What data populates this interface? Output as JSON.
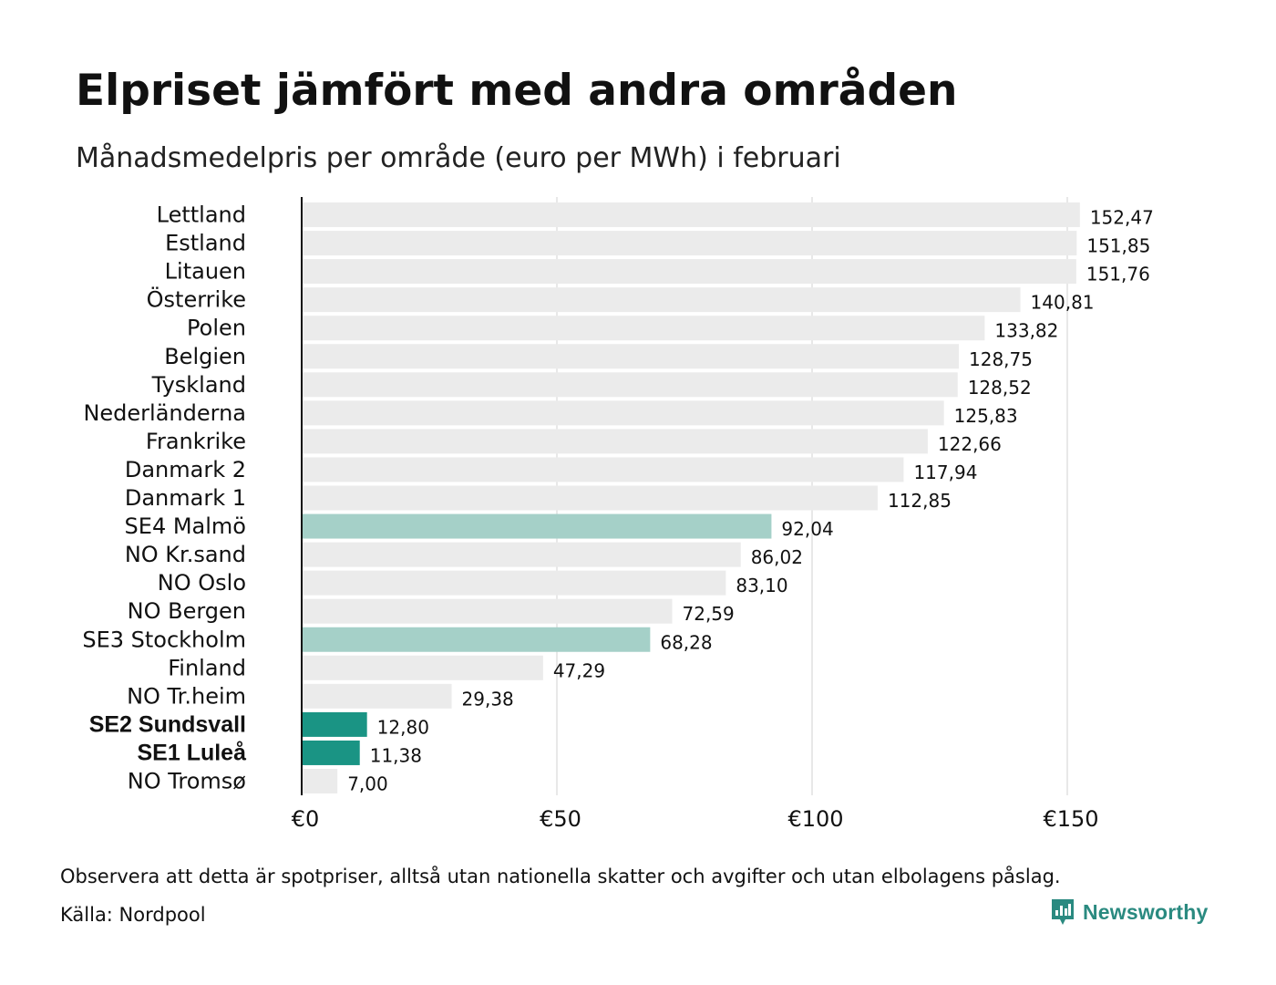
{
  "title": "Elpriset jämfört med andra områden",
  "subtitle": "Månadsmedelpris per område (euro per MWh) i februari",
  "note": "Observera att detta är spotpriser, alltså utan nationella skatter och avgifter och utan elbolagens påslag.",
  "source": "Källa: Nordpool",
  "brand": {
    "name": "Newsworthy",
    "icon": "newsworthy-logo-icon",
    "color": "#2a8a80"
  },
  "chart_data": {
    "type": "bar",
    "orientation": "horizontal",
    "title": "Elpriset jämfört med andra områden",
    "subtitle": "Månadsmedelpris per område (euro per MWh) i februari",
    "xlim": [
      0,
      160
    ],
    "x_ticks": [
      0,
      50,
      100,
      150
    ],
    "x_tick_labels": [
      "€0",
      "€50",
      "€100",
      "€150"
    ],
    "grid": true,
    "colors": {
      "default": "#ebebeb",
      "light": "#a5d0c8",
      "highlight": "#1a9484"
    },
    "categories": [
      "Lettland",
      "Estland",
      "Litauen",
      "Österrike",
      "Polen",
      "Belgien",
      "Tyskland",
      "Nederländerna",
      "Frankrike",
      "Danmark 2",
      "Danmark 1",
      "SE4 Malmö",
      "NO Kr.sand",
      "NO Oslo",
      "NO Bergen",
      "SE3 Stockholm",
      "Finland",
      "NO Tr.heim",
      "SE2 Sundsvall",
      "SE1 Luleå",
      "NO Tromsø"
    ],
    "values": [
      152.47,
      151.85,
      151.76,
      140.81,
      133.82,
      128.75,
      128.52,
      125.83,
      122.66,
      117.94,
      112.85,
      92.04,
      86.02,
      83.1,
      72.59,
      68.28,
      47.29,
      29.38,
      12.8,
      11.38,
      7.0
    ],
    "value_labels": [
      "152,47",
      "151,85",
      "151,76",
      "140,81",
      "133,82",
      "128,75",
      "128,52",
      "125,83",
      "122,66",
      "117,94",
      "112,85",
      "92,04",
      "86,02",
      "83,10",
      "72,59",
      "68,28",
      "47,29",
      "29,38",
      "12,80",
      "11,38",
      "7,00"
    ],
    "styles": [
      "default",
      "default",
      "default",
      "default",
      "default",
      "default",
      "default",
      "default",
      "default",
      "default",
      "default",
      "light",
      "default",
      "default",
      "default",
      "light",
      "default",
      "default",
      "highlight",
      "highlight",
      "default"
    ],
    "bold_labels": [
      "SE2 Sundsvall",
      "SE1 Luleå"
    ]
  }
}
